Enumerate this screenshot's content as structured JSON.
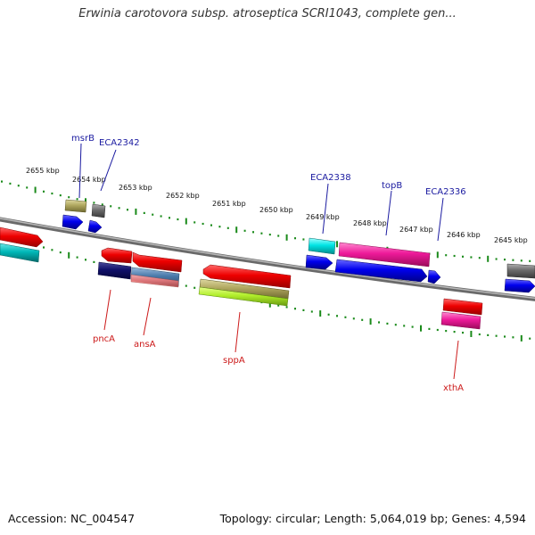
{
  "title": "Erwinia carotovora subsp. atroseptica SCRI1043, complete gen...",
  "footer": {
    "accession": "Accession: NC_004547",
    "topology": "Topology: circular; Length: 5,064,019 bp; Genes: 4,594"
  },
  "kbp_labels": [
    "2655 kbp",
    "2654 kbp",
    "2653 kbp",
    "2652 kbp",
    "2651 kbp",
    "2650 kbp",
    "2649 kbp",
    "2648 kbp",
    "2647 kbp",
    "2646 kbp",
    "2645 kbp"
  ],
  "top_gene_labels": [
    "msrB",
    "ECA2342",
    "ECA2338",
    "topB",
    "ECA2336"
  ],
  "bottom_gene_labels": [
    "pncA",
    "ansA",
    "sppA",
    "xthA"
  ],
  "colors": {
    "backbone": "#7a7a7a",
    "tick": "#1a8a1a",
    "label_blue": "#1a1aa0",
    "label_red": "#cc1a1a"
  }
}
